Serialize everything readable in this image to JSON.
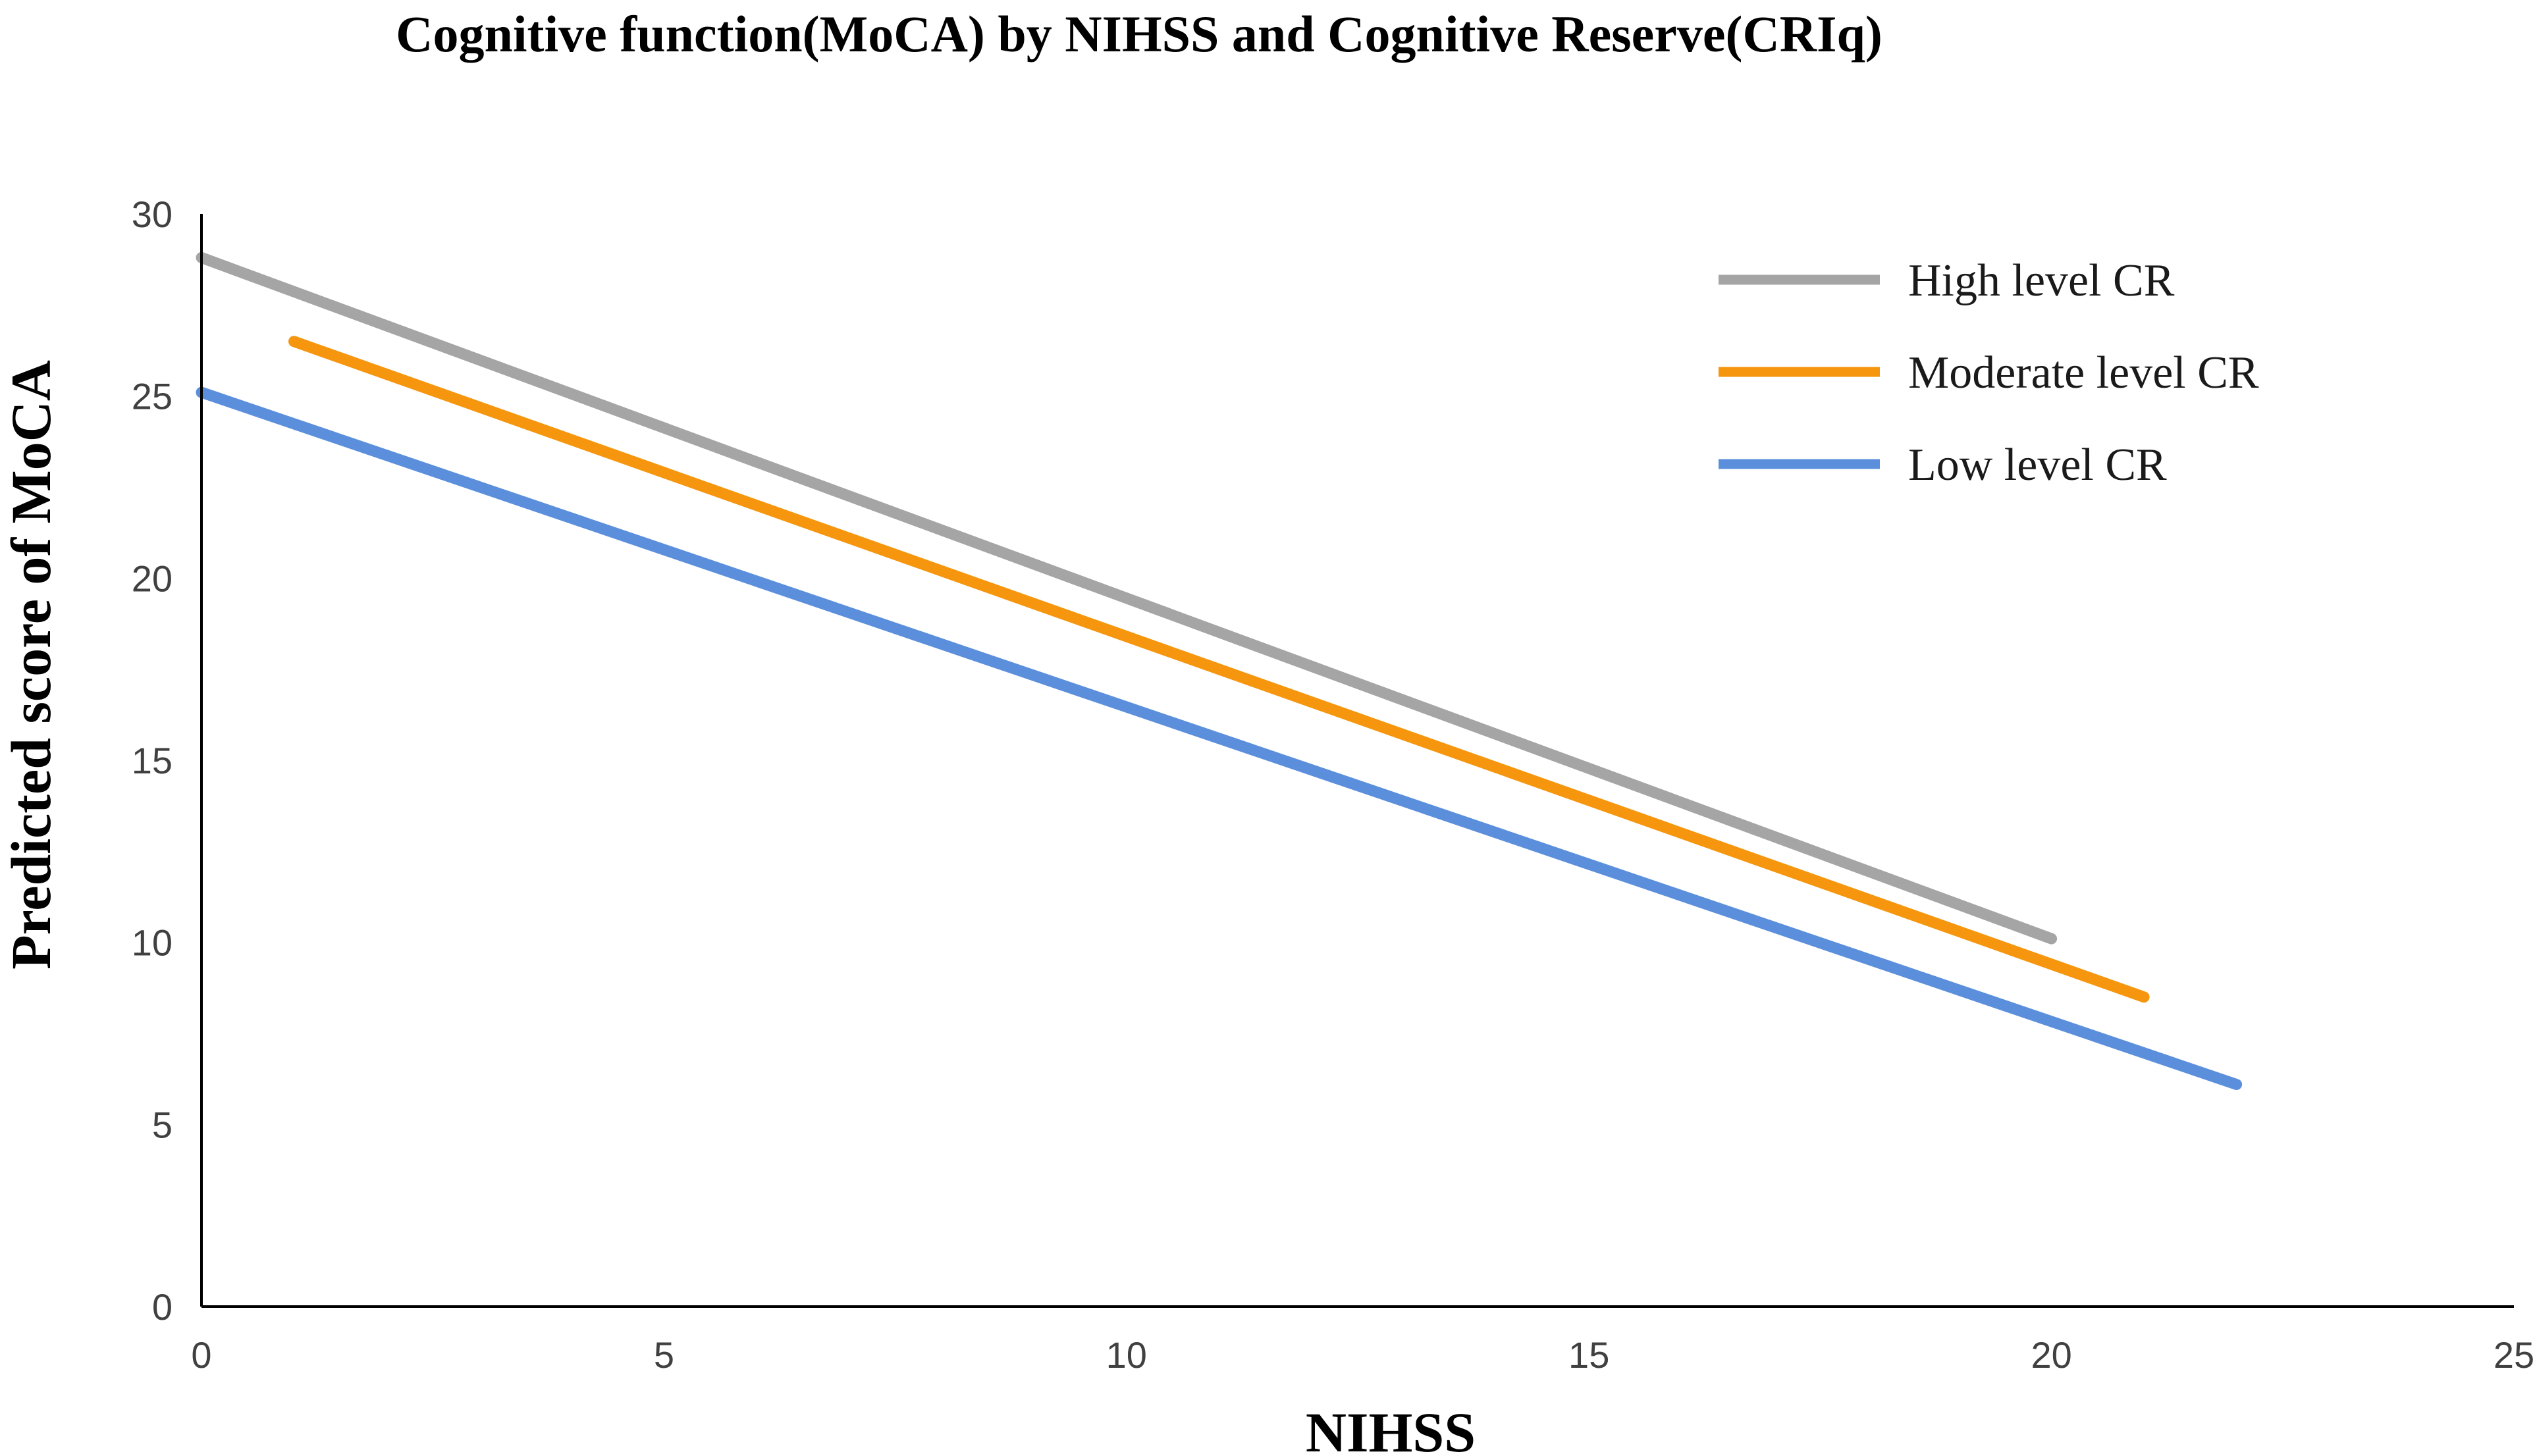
{
  "chart_data": {
    "type": "line",
    "title": "Cognitive function(MoCA) by NIHSS and Cognitive Reserve(CRIq)",
    "xlabel": "NIHSS",
    "ylabel": "Predicted score of MoCA",
    "xlim": [
      0,
      25
    ],
    "ylim": [
      0,
      30
    ],
    "xticks": [
      0,
      5,
      10,
      15,
      20,
      25
    ],
    "yticks": [
      0,
      5,
      10,
      15,
      20,
      25,
      30
    ],
    "grid": false,
    "legend_position": "top-right",
    "series": [
      {
        "name": "High level CR",
        "color": "#A5A5A5",
        "x": [
          0,
          20
        ],
        "y": [
          28.8,
          10.1
        ]
      },
      {
        "name": "Moderate level CR",
        "color": "#F5960E",
        "x": [
          1,
          21
        ],
        "y": [
          26.5,
          8.5
        ]
      },
      {
        "name": "Low level CR",
        "color": "#5B8FDC",
        "x": [
          0,
          22
        ],
        "y": [
          25.1,
          6.1
        ]
      }
    ]
  }
}
